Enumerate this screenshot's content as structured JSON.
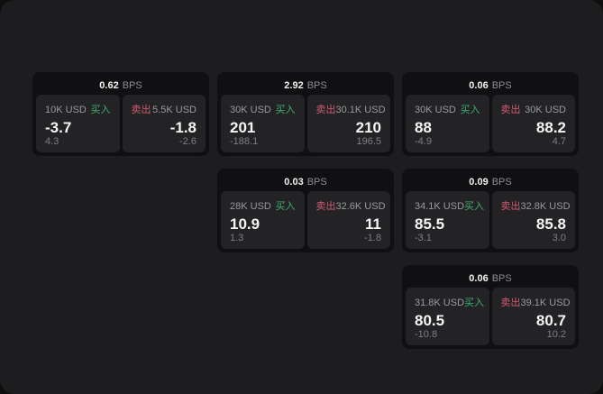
{
  "labels": {
    "buy": "买入",
    "sell": "卖出",
    "bps": "BPS"
  },
  "colors": {
    "outer_bg": "#0e0e0e",
    "window_bg": "#1d1d1f",
    "card_bg": "#101012",
    "pane_bg": "#232326",
    "buy_green": "#3fae6d",
    "sell_red": "#d25b72",
    "text_primary": "#f5f5f5",
    "text_muted": "#8d8d8f"
  },
  "cards": [
    {
      "bps": "0.62",
      "buy": {
        "amount": "10K USD",
        "value": "-3.7",
        "delta": "4.3"
      },
      "sell": {
        "amount": "5.5K USD",
        "value": "-1.8",
        "delta": "-2.6"
      }
    },
    {
      "bps": "2.92",
      "buy": {
        "amount": "30K USD",
        "value": "201",
        "delta": "-188.1"
      },
      "sell": {
        "amount": "30.1K USD",
        "value": "210",
        "delta": "196.5"
      }
    },
    {
      "bps": "0.06",
      "buy": {
        "amount": "30K USD",
        "value": "88",
        "delta": "-4.9"
      },
      "sell": {
        "amount": "30K USD",
        "value": "88.2",
        "delta": "4.7"
      }
    },
    {
      "bps": "0.03",
      "buy": {
        "amount": "28K USD",
        "value": "10.9",
        "delta": "1.3"
      },
      "sell": {
        "amount": "32.6K USD",
        "value": "11",
        "delta": "-1.8"
      }
    },
    {
      "bps": "0.09",
      "buy": {
        "amount": "34.1K USD",
        "value": "85.5",
        "delta": "-3.1"
      },
      "sell": {
        "amount": "32.8K USD",
        "value": "85.8",
        "delta": "3.0"
      }
    },
    {
      "bps": "0.06",
      "buy": {
        "amount": "31.8K USD",
        "value": "80.5",
        "delta": "-10.8"
      },
      "sell": {
        "amount": "39.1K USD",
        "value": "80.7",
        "delta": "10.2"
      }
    }
  ]
}
